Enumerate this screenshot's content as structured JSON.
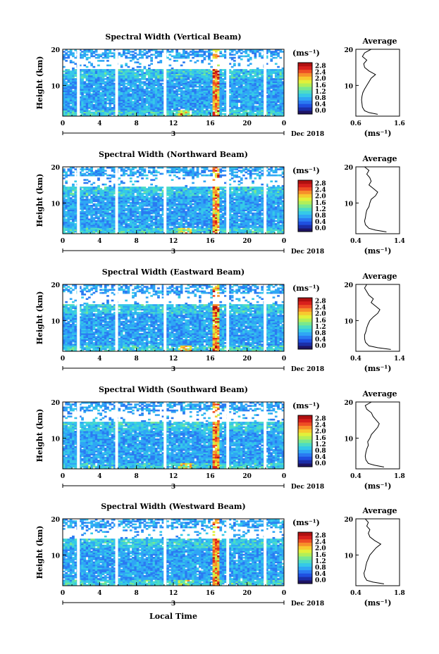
{
  "figure": {
    "xlabel": "Local Time",
    "date_label": "Dec 2018",
    "day_tick_label": "3",
    "cb_unit": "(ms⁻¹)",
    "avg_title": "Average",
    "avg_unit": "(ms⁻¹)",
    "colorscale": [
      "#1e1464",
      "#1b2ea8",
      "#1f4fe0",
      "#2a7af2",
      "#2fa6f5",
      "#35c9e8",
      "#4ddcc4",
      "#7ae88e",
      "#b2ef58",
      "#e2f03a",
      "#f7c92f",
      "#f7902a",
      "#ee4e24",
      "#d8201c",
      "#b01010"
    ]
  },
  "chart_data": [
    {
      "type": "heatmap",
      "title": "Spectral Width (Vertical Beam)",
      "ylabel": "Height (km)",
      "xlim": [
        0,
        24
      ],
      "x_ticks": [
        "0",
        "4",
        "8",
        "12",
        "16",
        "20",
        "0"
      ],
      "ylim": [
        1.5,
        20
      ],
      "y_ticks": [
        "10",
        "20"
      ],
      "colorbar_ticks": [
        "0.0",
        "0.4",
        "0.8",
        "1.2",
        "1.6",
        "2.0",
        "2.4",
        "2.8"
      ],
      "colorbar_range": [
        0,
        3.0
      ],
      "avg_profile": {
        "xlim": [
          0.6,
          1.6
        ],
        "x_ticks": [
          "0.6",
          "1.6"
        ],
        "height": [
          2,
          2.5,
          3,
          4,
          5,
          6,
          7,
          8,
          9,
          10,
          11,
          12,
          13,
          14,
          15,
          16,
          17,
          18,
          19,
          20
        ],
        "width": [
          1.1,
          0.9,
          0.8,
          0.75,
          0.74,
          0.73,
          0.74,
          0.76,
          0.8,
          0.85,
          0.9,
          0.95,
          1.05,
          0.9,
          0.8,
          0.78,
          0.85,
          0.75,
          0.8,
          0.95
        ]
      }
    },
    {
      "type": "heatmap",
      "title": "Spectral Width (Northward Beam)",
      "ylabel": "Height (km)",
      "xlim": [
        0,
        24
      ],
      "x_ticks": [
        "0",
        "4",
        "8",
        "12",
        "16",
        "20",
        "0"
      ],
      "ylim": [
        1.5,
        20
      ],
      "y_ticks": [
        "10",
        "20"
      ],
      "colorbar_ticks": [
        "0.0",
        "0.4",
        "0.8",
        "1.2",
        "1.6",
        "2.0",
        "2.4",
        "2.8"
      ],
      "colorbar_range": [
        0,
        3.0
      ],
      "avg_profile": {
        "xlim": [
          0.4,
          1.4
        ],
        "x_ticks": [
          "0.4",
          "1.4"
        ],
        "height": [
          2,
          2.5,
          3,
          4,
          5,
          6,
          7,
          8,
          9,
          10,
          11,
          12,
          13,
          14,
          15,
          16,
          17,
          18,
          19,
          20
        ],
        "width": [
          1.1,
          0.85,
          0.7,
          0.62,
          0.6,
          0.62,
          0.63,
          0.65,
          0.7,
          0.72,
          0.75,
          0.85,
          0.9,
          0.8,
          0.7,
          0.75,
          0.72,
          0.65,
          0.7,
          0.6
        ]
      }
    },
    {
      "type": "heatmap",
      "title": "Spectral Width (Eastward Beam)",
      "ylabel": "Height (km)",
      "xlim": [
        0,
        24
      ],
      "x_ticks": [
        "0",
        "4",
        "8",
        "12",
        "16",
        "20",
        "0"
      ],
      "ylim": [
        1.5,
        20
      ],
      "y_ticks": [
        "10",
        "20"
      ],
      "colorbar_ticks": [
        "0.0",
        "0.4",
        "0.8",
        "1.2",
        "1.6",
        "2.0",
        "2.4",
        "2.8"
      ],
      "colorbar_range": [
        0,
        3.0
      ],
      "avg_profile": {
        "xlim": [
          0.4,
          1.4
        ],
        "x_ticks": [
          "0.4",
          "1.4"
        ],
        "height": [
          2,
          2.5,
          3,
          4,
          5,
          6,
          7,
          8,
          9,
          10,
          11,
          12,
          13,
          14,
          15,
          16,
          17,
          18,
          19,
          20
        ],
        "width": [
          1.2,
          0.9,
          0.7,
          0.62,
          0.6,
          0.6,
          0.63,
          0.65,
          0.68,
          0.72,
          0.8,
          0.9,
          0.95,
          0.85,
          0.75,
          0.8,
          0.7,
          0.65,
          0.6,
          0.65
        ]
      }
    },
    {
      "type": "heatmap",
      "title": "Spectral Width (Southward Beam)",
      "ylabel": "Height (km)",
      "xlim": [
        0,
        24
      ],
      "x_ticks": [
        "0",
        "4",
        "8",
        "12",
        "16",
        "20",
        "0"
      ],
      "ylim": [
        1.5,
        20
      ],
      "y_ticks": [
        "10",
        "20"
      ],
      "colorbar_ticks": [
        "0.0",
        "0.4",
        "0.8",
        "1.2",
        "1.6",
        "2.0",
        "2.4",
        "2.8"
      ],
      "colorbar_range": [
        0,
        3.0
      ],
      "avg_profile": {
        "xlim": [
          0.4,
          1.8
        ],
        "x_ticks": [
          "0.4",
          "1.8"
        ],
        "height": [
          2,
          2.5,
          3,
          4,
          5,
          6,
          7,
          8,
          9,
          10,
          11,
          12,
          13,
          14,
          15,
          16,
          17,
          18,
          19,
          20
        ],
        "width": [
          1.3,
          1.0,
          0.8,
          0.72,
          0.7,
          0.72,
          0.75,
          0.8,
          0.78,
          0.85,
          0.9,
          1.0,
          1.1,
          1.15,
          1.05,
          0.95,
          0.9,
          0.75,
          0.7,
          0.9
        ]
      }
    },
    {
      "type": "heatmap",
      "title": "Spectral Width (Westward Beam)",
      "ylabel": "Height (km)",
      "xlim": [
        0,
        24
      ],
      "x_ticks": [
        "0",
        "4",
        "8",
        "12",
        "16",
        "20",
        "0"
      ],
      "ylim": [
        1.5,
        20
      ],
      "y_ticks": [
        "10",
        "20"
      ],
      "colorbar_ticks": [
        "0.0",
        "0.4",
        "0.8",
        "1.2",
        "1.6",
        "2.0",
        "2.4",
        "2.8"
      ],
      "colorbar_range": [
        0,
        3.0
      ],
      "avg_profile": {
        "xlim": [
          0.4,
          1.8
        ],
        "x_ticks": [
          "0.4",
          "1.8"
        ],
        "height": [
          2,
          2.5,
          3,
          4,
          5,
          6,
          7,
          8,
          9,
          10,
          11,
          12,
          13,
          14,
          15,
          16,
          17,
          18,
          19,
          20
        ],
        "width": [
          1.3,
          0.95,
          0.75,
          0.68,
          0.66,
          0.7,
          0.72,
          0.75,
          0.8,
          0.85,
          0.95,
          1.05,
          1.2,
          1.0,
          0.85,
          0.8,
          0.85,
          0.75,
          0.8,
          0.7
        ]
      }
    }
  ]
}
